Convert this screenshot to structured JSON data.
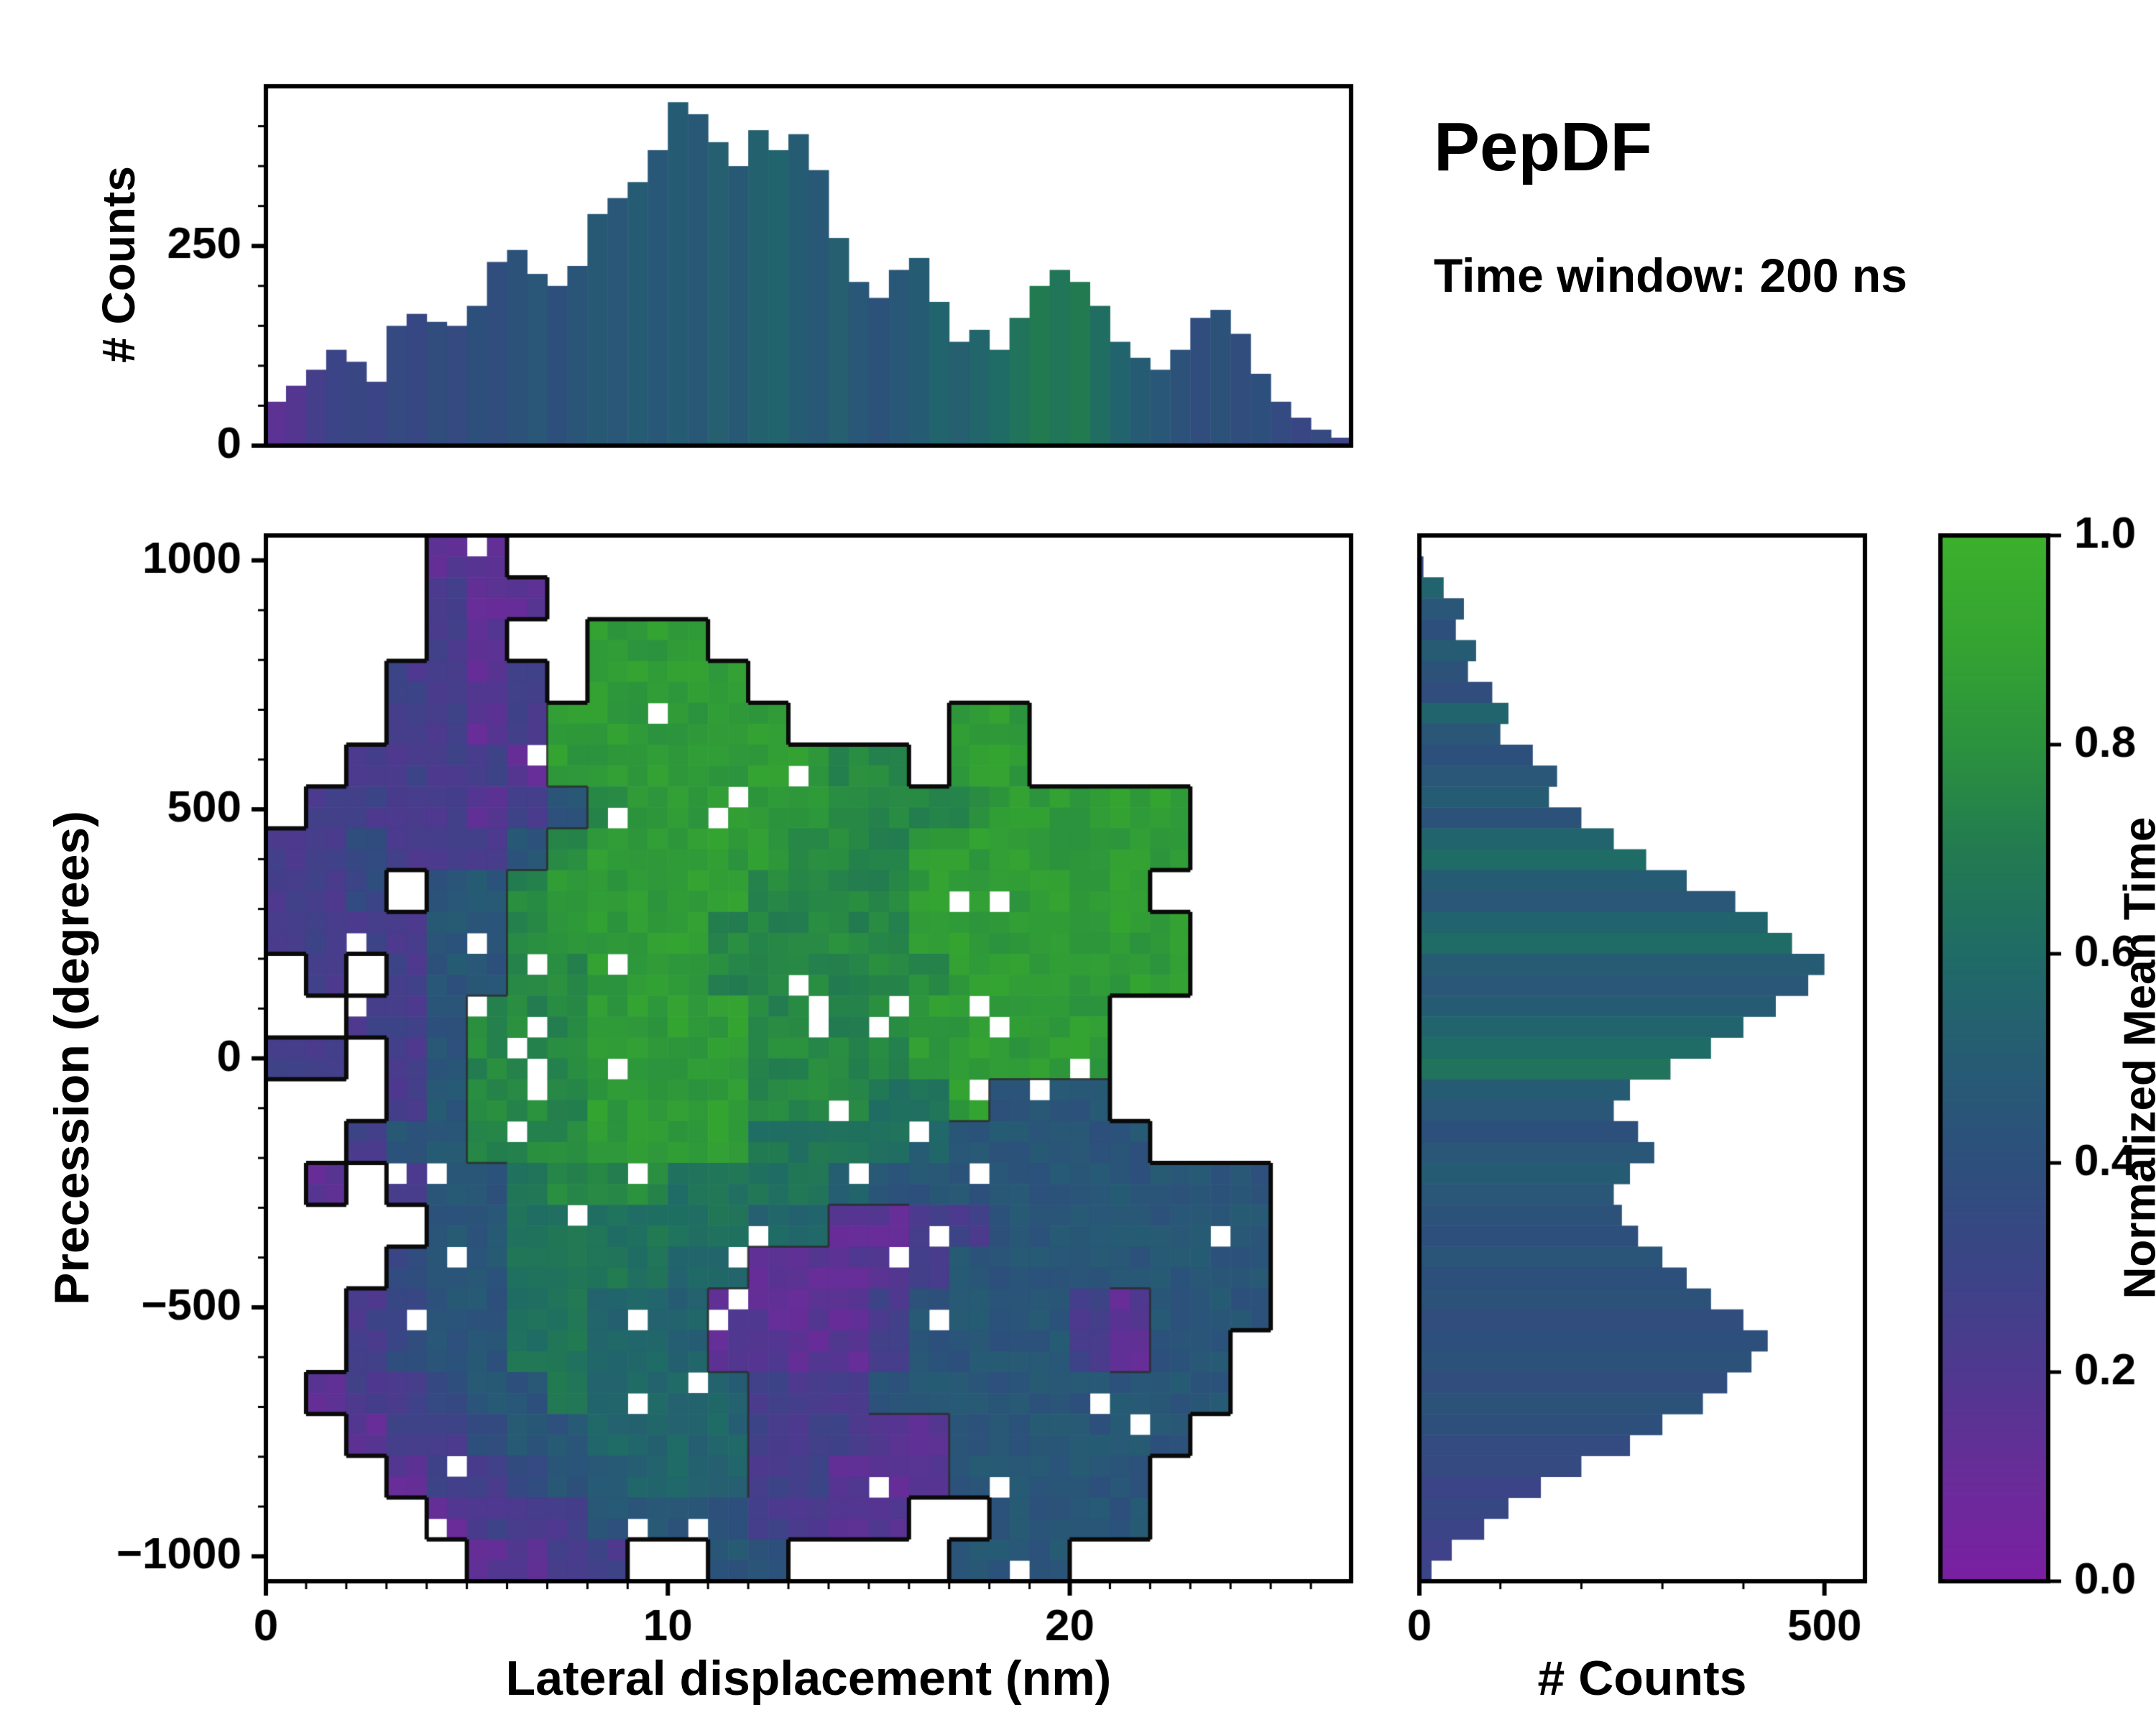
{
  "title": "PepDF",
  "subtitle": "Time window: 200 ns",
  "colors": {
    "background": "#ffffff",
    "spine": "#000000",
    "contour_outer": "#0a0a0a",
    "contour_inner": "#2b2b2b",
    "colormap_stops": [
      [
        0.0,
        "#7a1fa2"
      ],
      [
        0.1,
        "#692c99"
      ],
      [
        0.2,
        "#4f388f"
      ],
      [
        0.3,
        "#3b4486"
      ],
      [
        0.4,
        "#2d4f7c"
      ],
      [
        0.5,
        "#265c73"
      ],
      [
        0.6,
        "#1f6b66"
      ],
      [
        0.7,
        "#227b50"
      ],
      [
        0.8,
        "#2b923e"
      ],
      [
        0.9,
        "#34a431"
      ],
      [
        1.0,
        "#3cb02d"
      ]
    ]
  },
  "chart_data": [
    {
      "type": "heatmap",
      "xlabel": "Lateral displacement (nm)",
      "ylabel": "Precession (degrees)",
      "x_range": [
        0,
        27
      ],
      "y_range": [
        -1050,
        1050
      ],
      "x_ticks": [
        {
          "v": 0,
          "label": "0"
        },
        {
          "v": 10,
          "label": "10"
        },
        {
          "v": 20,
          "label": "20"
        }
      ],
      "y_ticks": [
        {
          "v": 1000,
          "label": "1000"
        },
        {
          "v": 500,
          "label": "500"
        },
        {
          "v": 0,
          "label": "0"
        },
        {
          "v": -500,
          "label": "−500"
        },
        {
          "v": -1000,
          "label": "−1000"
        }
      ],
      "value_label": "Normalized Mean Time",
      "value_range": [
        0,
        1
      ],
      "grid_cols": 27,
      "grid_rows": 25,
      "value_encoding": "each char: '.'=empty, digit d -> normalized mean time (d+0.5)/10; rows from +1050 deg (top) to -1050 deg (bottom), cols from 0 nm to 27 nm",
      "rows": [
        "....11.....................",
        "....211....................",
        "....21..888................",
        "...2212.8888...............",
        "...2212888888....88........",
        "..22221888888877.88........",
        ".2222124788888777788888....",
        "22322247888887778888888....",
        "223.447888887777888888.....",
        "22224478888777778888888....",
        ".2.24477888777777888888....",
        "..2247778888777788888......",
        "22.247778888777788888......",
        "...247778888777668444......",
        "..24477788886666544444.....",
        ".1.2446777666654444444444..",
        "....446666665511224444444..",
        "...3446666551111244444444..",
        "..23446655511112444421444..",
        "..2344665551111244442144...",
        ".12234465555222444444444...",
        "..122344555522211444444....",
        "...1223445552211144444.....",
        "....122244442211..4444.....",
        ".....1122..44....444......."
      ]
    },
    {
      "type": "bar",
      "orientation": "vertical",
      "ylabel": "# Counts",
      "x_range": [
        0,
        27
      ],
      "y_range": [
        0,
        450
      ],
      "y_ticks": [
        {
          "v": 0,
          "label": "0"
        },
        {
          "v": 250,
          "label": "250"
        }
      ],
      "bin_width_nm": 0.5,
      "values": [
        55,
        75,
        95,
        120,
        105,
        80,
        150,
        165,
        155,
        150,
        175,
        230,
        245,
        215,
        200,
        225,
        290,
        310,
        330,
        370,
        430,
        415,
        380,
        350,
        395,
        370,
        390,
        345,
        260,
        205,
        185,
        220,
        235,
        180,
        130,
        145,
        120,
        160,
        200,
        220,
        205,
        175,
        130,
        110,
        95,
        120,
        160,
        170,
        140,
        90,
        55,
        35,
        20,
        10
      ],
      "color_values": [
        0.15,
        0.18,
        0.25,
        0.3,
        0.32,
        0.3,
        0.35,
        0.33,
        0.38,
        0.35,
        0.4,
        0.38,
        0.42,
        0.45,
        0.4,
        0.44,
        0.48,
        0.45,
        0.5,
        0.46,
        0.5,
        0.47,
        0.52,
        0.48,
        0.53,
        0.55,
        0.5,
        0.47,
        0.52,
        0.46,
        0.42,
        0.46,
        0.5,
        0.55,
        0.52,
        0.56,
        0.6,
        0.65,
        0.7,
        0.66,
        0.7,
        0.62,
        0.55,
        0.5,
        0.46,
        0.42,
        0.38,
        0.42,
        0.38,
        0.4,
        0.36,
        0.32,
        0.35,
        0.3
      ]
    },
    {
      "type": "bar",
      "orientation": "horizontal",
      "xlabel": "# Counts",
      "x_range": [
        0,
        550
      ],
      "x_ticks": [
        {
          "v": 0,
          "label": "0"
        },
        {
          "v": 500,
          "label": "500"
        }
      ],
      "y_range": [
        -1050,
        1050
      ],
      "bin_height_deg": 42,
      "values": [
        0,
        5,
        30,
        55,
        45,
        70,
        60,
        90,
        110,
        100,
        140,
        170,
        160,
        200,
        240,
        280,
        330,
        390,
        430,
        460,
        500,
        480,
        440,
        400,
        360,
        310,
        260,
        240,
        270,
        290,
        260,
        240,
        250,
        270,
        300,
        330,
        360,
        400,
        430,
        410,
        380,
        350,
        300,
        260,
        200,
        150,
        110,
        80,
        40,
        15
      ],
      "color_values": [
        0.3,
        0.35,
        0.55,
        0.45,
        0.4,
        0.5,
        0.42,
        0.38,
        0.55,
        0.45,
        0.4,
        0.45,
        0.5,
        0.42,
        0.55,
        0.6,
        0.5,
        0.45,
        0.55,
        0.6,
        0.5,
        0.45,
        0.5,
        0.55,
        0.6,
        0.65,
        0.5,
        0.45,
        0.4,
        0.45,
        0.5,
        0.45,
        0.42,
        0.4,
        0.44,
        0.4,
        0.42,
        0.38,
        0.4,
        0.42,
        0.38,
        0.42,
        0.4,
        0.36,
        0.35,
        0.3,
        0.33,
        0.3,
        0.28,
        0.3
      ]
    },
    {
      "type": "colorbar",
      "label": "Normalized Mean Time",
      "range": [
        0,
        1
      ],
      "ticks": [
        {
          "v": 0,
          "label": "0.0"
        },
        {
          "v": 0.2,
          "label": "0.2"
        },
        {
          "v": 0.4,
          "label": "0.4"
        },
        {
          "v": 0.6,
          "label": "0.6"
        },
        {
          "v": 0.8,
          "label": "0.8"
        },
        {
          "v": 1,
          "label": "1.0"
        }
      ]
    }
  ]
}
